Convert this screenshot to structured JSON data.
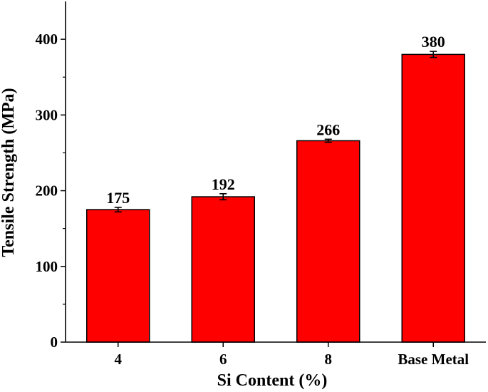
{
  "chart_data": {
    "type": "bar",
    "title": "",
    "xlabel": "Si Content (%)",
    "ylabel": "Tensile Strength (MPa)",
    "categories": [
      "4",
      "6",
      "8",
      "Base Metal"
    ],
    "values": [
      175,
      192,
      266,
      380
    ],
    "value_labels": [
      "175",
      "192",
      "266",
      "380"
    ],
    "errors": [
      3,
      4,
      2,
      4
    ],
    "ylim": [
      0,
      450
    ],
    "yticks": [
      0,
      100,
      200,
      300,
      400
    ],
    "ytick_labels": [
      "0",
      "100",
      "200",
      "300",
      "400"
    ],
    "bar_color": "#ff0000",
    "edge_color": "#000000",
    "grid": false,
    "legend": "none"
  }
}
